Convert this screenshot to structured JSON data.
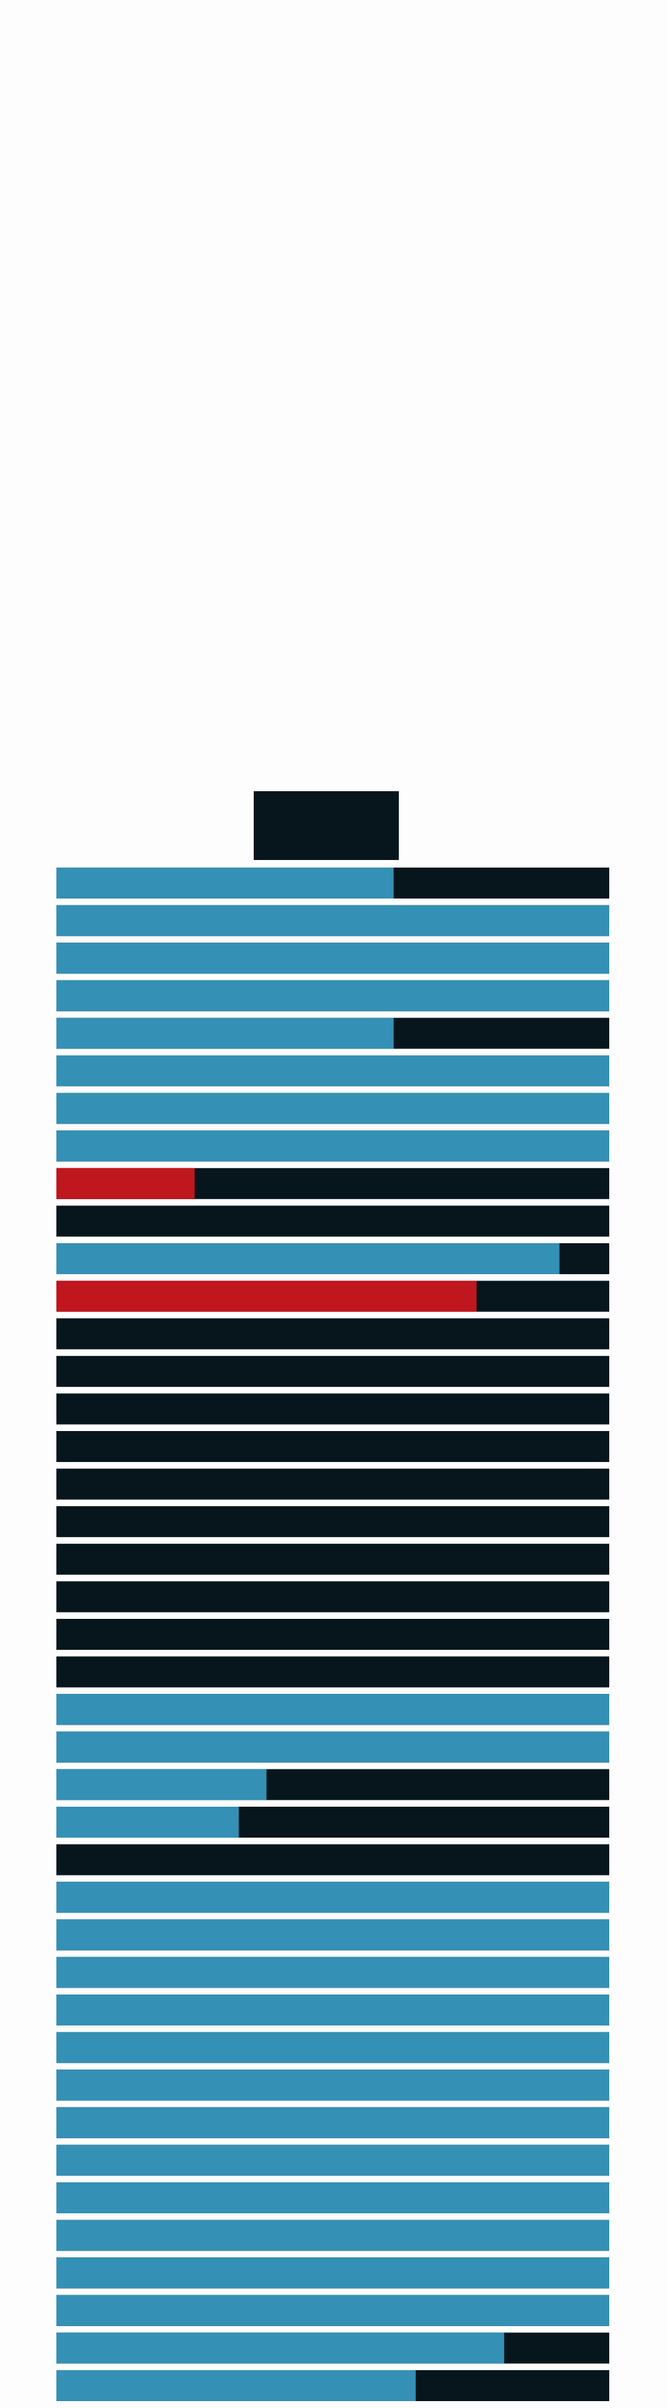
{
  "palette": {
    "blue": "#3490b4",
    "red": "#c0161e",
    "dark": "#07161d"
  },
  "rows": [
    {
      "fill": 61,
      "color": "blue"
    },
    {
      "fill": 100,
      "color": "blue"
    },
    {
      "fill": 100,
      "color": "blue"
    },
    {
      "fill": 100,
      "color": "blue"
    },
    {
      "fill": 61,
      "color": "blue"
    },
    {
      "fill": 100,
      "color": "blue"
    },
    {
      "fill": 100,
      "color": "blue"
    },
    {
      "fill": 100,
      "color": "blue"
    },
    {
      "fill": 25,
      "color": "red"
    },
    {
      "fill": 0,
      "color": "blue"
    },
    {
      "fill": 91,
      "color": "blue"
    },
    {
      "fill": 76,
      "color": "red"
    },
    {
      "fill": 0,
      "color": "blue"
    },
    {
      "fill": 0,
      "color": "blue"
    },
    {
      "fill": 0,
      "color": "blue"
    },
    {
      "fill": 0,
      "color": "blue"
    },
    {
      "fill": 0,
      "color": "blue"
    },
    {
      "fill": 0,
      "color": "blue"
    },
    {
      "fill": 0,
      "color": "blue"
    },
    {
      "fill": 0,
      "color": "blue"
    },
    {
      "fill": 0,
      "color": "blue"
    },
    {
      "fill": 0,
      "color": "blue"
    },
    {
      "fill": 100,
      "color": "blue"
    },
    {
      "fill": 100,
      "color": "blue"
    },
    {
      "fill": 38,
      "color": "blue"
    },
    {
      "fill": 33,
      "color": "blue"
    },
    {
      "fill": 0,
      "color": "blue"
    },
    {
      "fill": 100,
      "color": "blue"
    },
    {
      "fill": 100,
      "color": "blue"
    },
    {
      "fill": 100,
      "color": "blue"
    },
    {
      "fill": 100,
      "color": "blue"
    },
    {
      "fill": 100,
      "color": "blue"
    },
    {
      "fill": 100,
      "color": "blue"
    },
    {
      "fill": 100,
      "color": "blue"
    },
    {
      "fill": 100,
      "color": "blue"
    },
    {
      "fill": 100,
      "color": "blue"
    },
    {
      "fill": 100,
      "color": "blue"
    },
    {
      "fill": 100,
      "color": "blue"
    },
    {
      "fill": 100,
      "color": "blue"
    },
    {
      "fill": 81,
      "color": "blue"
    },
    {
      "fill": 65,
      "color": "blue"
    }
  ]
}
